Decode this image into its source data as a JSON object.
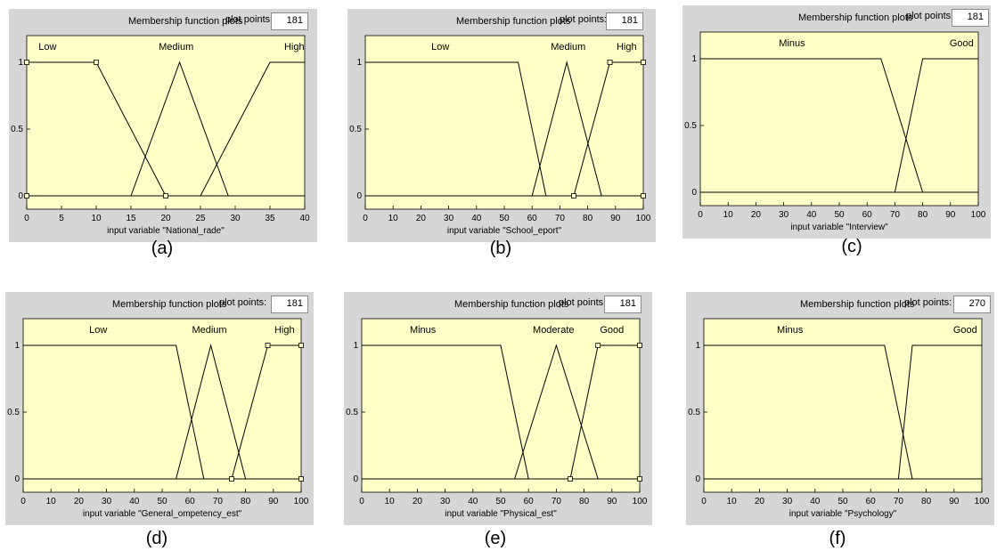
{
  "chart_data": [
    {
      "type": "line",
      "caption": "(a)",
      "header_title": "Membership function plots",
      "plot_points_label": "plot points:",
      "plot_points_value": "181",
      "xlabel": "input variable \"National_rade\"",
      "xlim": [
        0,
        40
      ],
      "ylim": [
        0,
        1
      ],
      "xticks": [
        "0",
        "5",
        "10",
        "15",
        "20",
        "25",
        "30",
        "35",
        "40"
      ],
      "yticks": [
        "0",
        "0.5",
        "1"
      ],
      "series": [
        {
          "name": "Low",
          "x": [
            0,
            10,
            20
          ],
          "y": [
            1,
            1,
            0
          ]
        },
        {
          "name": "Medium",
          "x": [
            15,
            22,
            29
          ],
          "y": [
            0,
            1,
            0
          ]
        },
        {
          "name": "High",
          "x": [
            25,
            35,
            40
          ],
          "y": [
            0,
            1,
            1
          ]
        }
      ],
      "markers": [
        {
          "x": 0,
          "y": 1
        },
        {
          "x": 10,
          "y": 1
        },
        {
          "x": 0,
          "y": 0
        },
        {
          "x": 20,
          "y": 0
        }
      ],
      "label_positions": [
        {
          "name": "Low",
          "x": 3
        },
        {
          "name": "Medium",
          "x": 21.5
        },
        {
          "name": "High",
          "x": 38.5
        }
      ]
    },
    {
      "type": "line",
      "caption": "(b)",
      "header_title": "Membership function plots",
      "plot_points_label": "plot points:",
      "plot_points_value": "181",
      "xlabel": "input variable \"School_eport\"",
      "xlim": [
        0,
        100
      ],
      "ylim": [
        0,
        1
      ],
      "xticks": [
        "0",
        "10",
        "20",
        "30",
        "40",
        "50",
        "60",
        "70",
        "80",
        "90",
        "100"
      ],
      "yticks": [
        "0",
        "0.5",
        "1"
      ],
      "series": [
        {
          "name": "Low",
          "x": [
            0,
            55,
            65
          ],
          "y": [
            1,
            1,
            0
          ]
        },
        {
          "name": "Medium",
          "x": [
            60,
            72.5,
            85
          ],
          "y": [
            0,
            1,
            0
          ]
        },
        {
          "name": "High",
          "x": [
            75,
            88,
            100
          ],
          "y": [
            0,
            1,
            1
          ]
        }
      ],
      "markers": [
        {
          "x": 88,
          "y": 1
        },
        {
          "x": 100,
          "y": 1
        },
        {
          "x": 75,
          "y": 0
        },
        {
          "x": 100,
          "y": 0
        }
      ],
      "label_positions": [
        {
          "name": "Low",
          "x": 27
        },
        {
          "name": "Medium",
          "x": 73
        },
        {
          "name": "High",
          "x": 94
        }
      ]
    },
    {
      "type": "line",
      "caption": "(c)",
      "header_title": "Membership function plots",
      "plot_points_label": "plot points:",
      "plot_points_value": "181",
      "xlabel": "input variable \"Interview\"",
      "xlim": [
        0,
        100
      ],
      "ylim": [
        0,
        1
      ],
      "xticks": [
        "0",
        "10",
        "20",
        "30",
        "40",
        "50",
        "60",
        "70",
        "80",
        "90",
        "100"
      ],
      "yticks": [
        "0",
        "0.5",
        "1"
      ],
      "series": [
        {
          "name": "Minus",
          "x": [
            0,
            65,
            80
          ],
          "y": [
            1,
            1,
            0
          ]
        },
        {
          "name": "Good",
          "x": [
            70,
            80,
            100
          ],
          "y": [
            0,
            1,
            1
          ]
        }
      ],
      "markers": [],
      "label_positions": [
        {
          "name": "Minus",
          "x": 33
        },
        {
          "name": "Good",
          "x": 94
        }
      ]
    },
    {
      "type": "line",
      "caption": "(d)",
      "header_title": "Membership function plots",
      "plot_points_label": "plot points:",
      "plot_points_value": "181",
      "xlabel": "input variable \"General_ompetency_est\"",
      "xlim": [
        0,
        100
      ],
      "ylim": [
        0,
        1
      ],
      "xticks": [
        "0",
        "10",
        "20",
        "30",
        "40",
        "50",
        "60",
        "70",
        "80",
        "90",
        "100"
      ],
      "yticks": [
        "0",
        "0.5",
        "1"
      ],
      "series": [
        {
          "name": "Low",
          "x": [
            0,
            55,
            65
          ],
          "y": [
            1,
            1,
            0
          ]
        },
        {
          "name": "Medium",
          "x": [
            55,
            67.5,
            80
          ],
          "y": [
            0,
            1,
            0
          ]
        },
        {
          "name": "High",
          "x": [
            75,
            88,
            100
          ],
          "y": [
            0,
            1,
            1
          ]
        }
      ],
      "markers": [
        {
          "x": 88,
          "y": 1
        },
        {
          "x": 100,
          "y": 1
        },
        {
          "x": 75,
          "y": 0
        },
        {
          "x": 100,
          "y": 0
        }
      ],
      "label_positions": [
        {
          "name": "Low",
          "x": 27
        },
        {
          "name": "Medium",
          "x": 67
        },
        {
          "name": "High",
          "x": 94
        }
      ]
    },
    {
      "type": "line",
      "caption": "(e)",
      "header_title": "Membership function plots",
      "plot_points_label": "plot points:",
      "plot_points_value": "181",
      "xlabel": "input variable \"Physical_est\"",
      "xlim": [
        0,
        100
      ],
      "ylim": [
        0,
        1
      ],
      "xticks": [
        "0",
        "10",
        "20",
        "30",
        "40",
        "50",
        "60",
        "70",
        "80",
        "90",
        "100"
      ],
      "yticks": [
        "0",
        "0.5",
        "1"
      ],
      "series": [
        {
          "name": "Minus",
          "x": [
            0,
            50,
            60
          ],
          "y": [
            1,
            1,
            0
          ]
        },
        {
          "name": "Moderate",
          "x": [
            55,
            70,
            85
          ],
          "y": [
            0,
            1,
            0
          ]
        },
        {
          "name": "Good",
          "x": [
            75,
            85,
            100
          ],
          "y": [
            0,
            1,
            1
          ]
        }
      ],
      "markers": [
        {
          "x": 85,
          "y": 1
        },
        {
          "x": 100,
          "y": 1
        },
        {
          "x": 75,
          "y": 0
        },
        {
          "x": 100,
          "y": 0
        }
      ],
      "label_positions": [
        {
          "name": "Minus",
          "x": 22
        },
        {
          "name": "Moderate",
          "x": 69
        },
        {
          "name": "Good",
          "x": 90
        }
      ]
    },
    {
      "type": "line",
      "caption": "(f)",
      "header_title": "Membership function plots",
      "plot_points_label": "plot points:",
      "plot_points_value": "270",
      "xlabel": "input variable \"Psychology\"",
      "xlim": [
        0,
        100
      ],
      "ylim": [
        0,
        1
      ],
      "xticks": [
        "0",
        "10",
        "20",
        "30",
        "40",
        "50",
        "60",
        "70",
        "80",
        "90",
        "100"
      ],
      "yticks": [
        "0",
        "0.5",
        "1"
      ],
      "series": [
        {
          "name": "Minus",
          "x": [
            0,
            65,
            75
          ],
          "y": [
            1,
            1,
            0
          ]
        },
        {
          "name": "Good",
          "x": [
            70,
            75,
            100
          ],
          "y": [
            0,
            1,
            1
          ]
        }
      ],
      "markers": [],
      "label_positions": [
        {
          "name": "Minus",
          "x": 31
        },
        {
          "name": "Good",
          "x": 94
        }
      ]
    }
  ],
  "colors": {
    "plot_background": "#ffffc8",
    "panel_background": "#d6d6d6",
    "line": "#000000"
  }
}
